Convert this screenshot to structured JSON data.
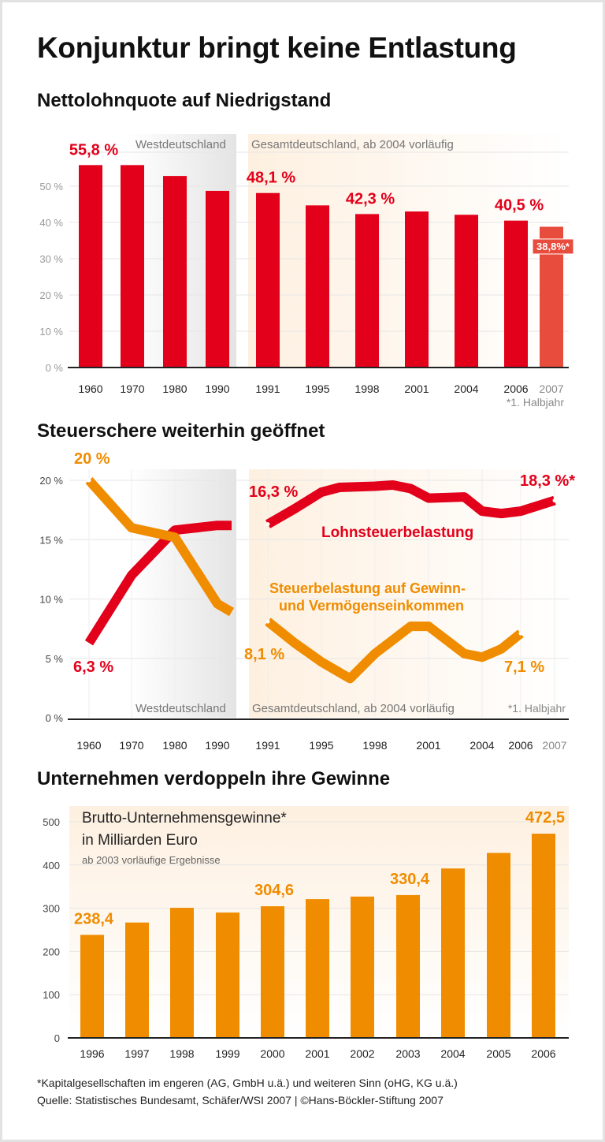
{
  "title": "Konjunktur bringt keine Entlastung",
  "colors": {
    "red": "#e2001a",
    "orange": "#f08c00",
    "red_light": "#e84c3d",
    "grid": "#e6e6e6",
    "axis_text": "#999999"
  },
  "footnote": "*Kapitalgesellschaften im engeren (AG, GmbH u.ä.) und weiteren Sinn (oHG, KG u.ä.)",
  "source": "Quelle: Statistisches Bundesamt, Schäfer/WSI 2007 | ©Hans-Böckler-Stiftung 2007",
  "chart_data": [
    {
      "type": "bar",
      "title": "Nettolohnquote auf Niedrigstand",
      "region_labels": [
        "Westdeutschland",
        "Gesamtdeutschland, ab 2004 vorläufig"
      ],
      "categories": [
        "1960",
        "1970",
        "1980",
        "1990",
        "1991",
        "1995",
        "1998",
        "2001",
        "2004",
        "2006",
        "2007"
      ],
      "values": [
        55.8,
        55.8,
        52.8,
        48.7,
        48.1,
        44.7,
        42.3,
        43.0,
        42.1,
        40.5,
        38.8
      ],
      "data_labels": {
        "1960": "55,8 %",
        "1991": "48,1 %",
        "1998": "42,3 %",
        "2006": "40,5 %",
        "2007": "38,8%*"
      },
      "note": "*1. Halbjahr",
      "ylim": [
        0,
        60
      ],
      "yticks": [
        "0 %",
        "10 %",
        "20 %",
        "30 %",
        "40 %",
        "50 %"
      ],
      "grid": true
    },
    {
      "type": "line",
      "title": "Steuerschere weiterhin geöffnet",
      "region_labels": [
        "Westdeutschland",
        "Gesamtdeutschland, ab 2004 vorläufig"
      ],
      "note": "*1. Halbjahr",
      "xticks": [
        "1960",
        "1970",
        "1980",
        "1990",
        "1991",
        "1995",
        "1998",
        "2001",
        "2004",
        "2006",
        "2007"
      ],
      "ylim": [
        0,
        21
      ],
      "yticks": [
        "0 %",
        "5 %",
        "10 %",
        "15 %",
        "20 %"
      ],
      "grid": true,
      "series": [
        {
          "name": "Lohnsteuerbelastung",
          "color": "#e2001a",
          "west": [
            [
              1960,
              6.3
            ],
            [
              1970,
              12.0
            ],
            [
              1980,
              15.8
            ],
            [
              1990,
              16.2
            ],
            [
              1993,
              16.2
            ]
          ],
          "unified": [
            [
              1991,
              16.3
            ],
            [
              1993,
              17.6
            ],
            [
              1995,
              19.0
            ],
            [
              1996,
              19.4
            ],
            [
              1998,
              19.5
            ],
            [
              1999,
              19.6
            ],
            [
              2000,
              19.3
            ],
            [
              2001,
              18.5
            ],
            [
              2003,
              18.6
            ],
            [
              2004,
              17.4
            ],
            [
              2005,
              17.2
            ],
            [
              2006,
              17.4
            ],
            [
              2007,
              18.3
            ]
          ],
          "data_labels": {
            "1960": "6,3 %",
            "1991": "16,3 %",
            "2007": "18,3 %*"
          }
        },
        {
          "name": "Steuerbelastung auf Gewinn- und Vermögenseinkommen",
          "name_lines": [
            "Steuerbelastung auf Gewinn-",
            "und Vermögenseinkommen"
          ],
          "color": "#f08c00",
          "west": [
            [
              1960,
              20.0
            ],
            [
              1970,
              16.0
            ],
            [
              1980,
              15.2
            ],
            [
              1990,
              9.6
            ],
            [
              1993,
              8.9
            ]
          ],
          "unified": [
            [
              1991,
              8.1
            ],
            [
              1993,
              6.3
            ],
            [
              1995,
              4.7
            ],
            [
              1996.6,
              3.3
            ],
            [
              1998,
              5.4
            ],
            [
              2000,
              7.7
            ],
            [
              2001,
              7.7
            ],
            [
              2003,
              5.4
            ],
            [
              2004,
              5.1
            ],
            [
              2005,
              5.8
            ],
            [
              2006,
              7.1
            ]
          ],
          "data_labels": {
            "1960": "20 %",
            "1991": "8,1 %",
            "2006": "7,1 %"
          }
        }
      ]
    },
    {
      "type": "bar",
      "title": "Unternehmen verdoppeln ihre Gewinne",
      "legend_lines": [
        "Brutto-Unternehmensgewinne*",
        "in Milliarden Euro"
      ],
      "subnote": "ab 2003 vorläufige Ergebnisse",
      "categories": [
        "1996",
        "1997",
        "1998",
        "1999",
        "2000",
        "2001",
        "2002",
        "2003",
        "2004",
        "2005",
        "2006"
      ],
      "values": [
        238.4,
        267,
        301,
        290,
        304.6,
        321,
        327,
        330.4,
        392,
        428,
        472.5
      ],
      "data_labels": {
        "1996": "238,4",
        "2000": "304,6",
        "2003": "330,4",
        "2006": "472,5"
      },
      "ylim": [
        0,
        520
      ],
      "yticks": [
        "0",
        "100",
        "200",
        "300",
        "400",
        "500"
      ],
      "grid": true
    }
  ]
}
